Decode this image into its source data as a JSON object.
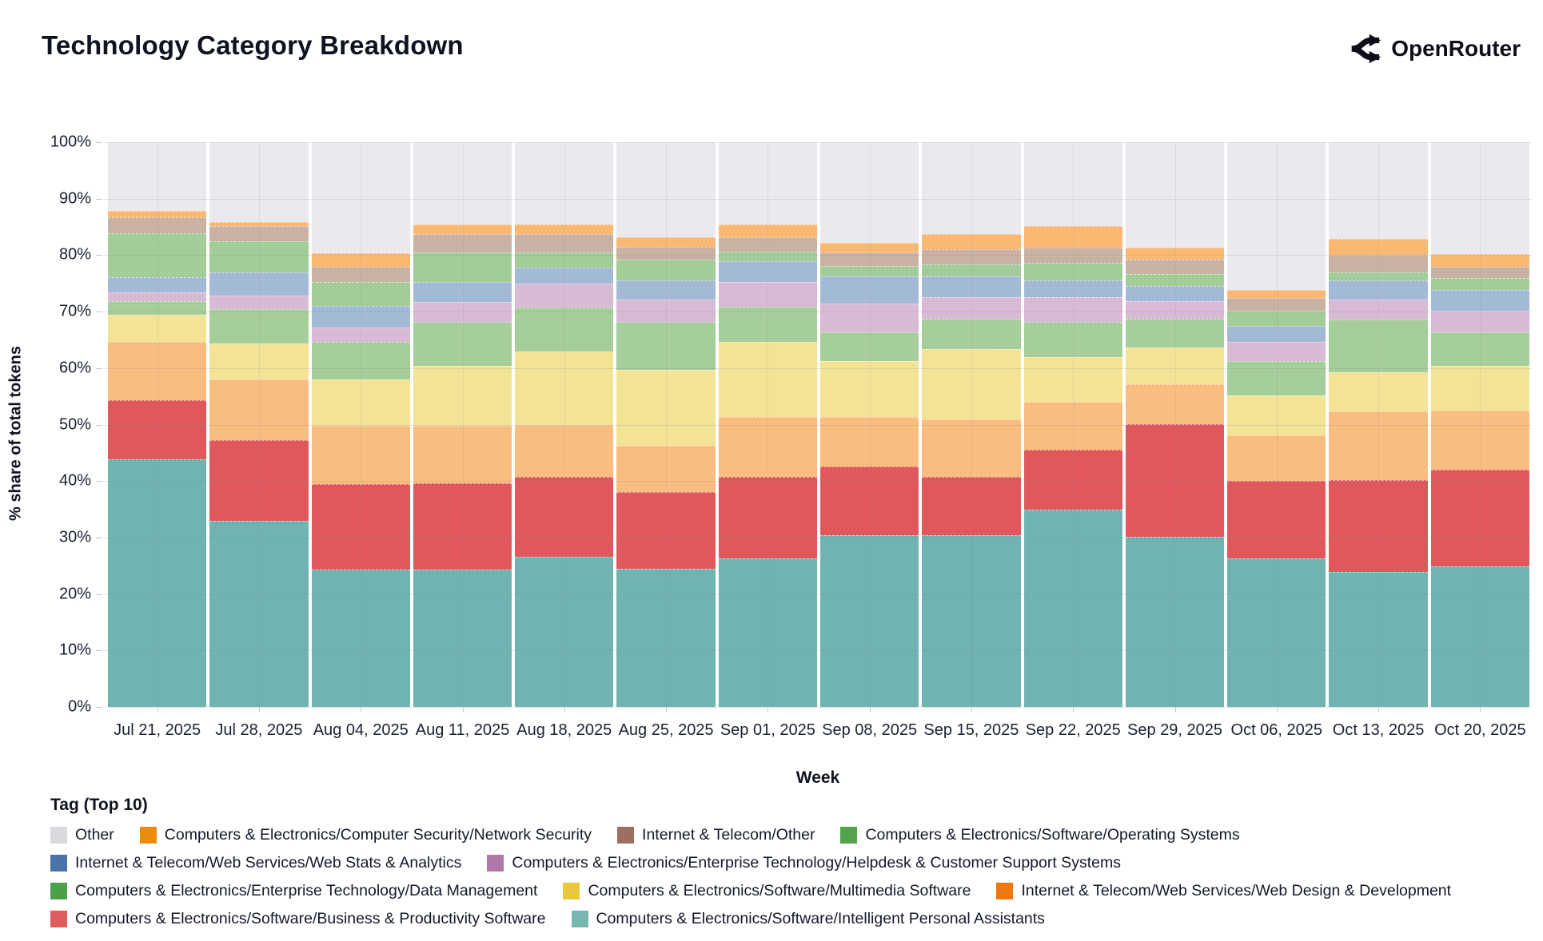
{
  "header": {
    "title": "Technology Category Breakdown",
    "brand": "OpenRouter"
  },
  "chart_data": {
    "type": "bar",
    "stacked": true,
    "title": "Technology Category Breakdown",
    "xlabel": "Week",
    "ylabel": "% share of total tokens",
    "ylim": [
      0,
      100
    ],
    "grid": true,
    "legend_position": "bottom",
    "legend_title": "Tag (Top 10)",
    "yticks": [
      "0%",
      "10%",
      "20%",
      "30%",
      "40%",
      "50%",
      "60%",
      "70%",
      "80%",
      "90%",
      "100%"
    ],
    "categories": [
      "Jul 21, 2025",
      "Jul 28, 2025",
      "Aug 04, 2025",
      "Aug 11, 2025",
      "Aug 18, 2025",
      "Aug 25, 2025",
      "Sep 01, 2025",
      "Sep 08, 2025",
      "Sep 15, 2025",
      "Sep 22, 2025",
      "Sep 29, 2025",
      "Oct 06, 2025",
      "Oct 13, 2025",
      "Oct 20, 2025"
    ],
    "series": [
      {
        "name": "Computers & Electronics/Software/Intelligent Personal Assistants",
        "bar_color": "#6FB4B0",
        "legend_color": "#76B7B2",
        "pattern": "none",
        "values": [
          43.8,
          32.9,
          24.3,
          24.4,
          26.6,
          24.5,
          26.3,
          30.4,
          30.4,
          34.9,
          30.1,
          26.3,
          23.9,
          24.9
        ]
      },
      {
        "name": "Computers & Electronics/Software/Business & Productivity Software",
        "bar_color": "#E0585B",
        "legend_color": "#E05C5C",
        "pattern": "none",
        "values": [
          10.5,
          14.3,
          15.2,
          15.2,
          14.2,
          13.5,
          14.4,
          12.2,
          10.4,
          10.7,
          20.0,
          13.8,
          16.3,
          17.1
        ]
      },
      {
        "name": "Internet & Telecom/Web Services/Web Design & Development",
        "bar_color": "#F9BD80",
        "legend_color": "#F0770F",
        "pattern": "none",
        "values": [
          10.3,
          10.8,
          10.3,
          10.2,
          9.2,
          8.2,
          10.7,
          8.8,
          10.1,
          8.5,
          7.0,
          8.0,
          12.1,
          10.5
        ]
      },
      {
        "name": "Computers & Electronics/Software/Multimedia Software",
        "bar_color": "#F3E394",
        "legend_color": "#E9C839",
        "pattern": "none",
        "values": [
          4.9,
          6.4,
          8.2,
          10.6,
          13.0,
          13.5,
          13.2,
          9.9,
          12.5,
          7.8,
          6.6,
          7.1,
          6.9,
          7.9
        ]
      },
      {
        "name": "Computers & Electronics/Enterprise Technology/Data Management",
        "bar_color": "#A5CE9B",
        "legend_color": "#4CA04A",
        "pattern": "none",
        "values": [
          2.4,
          6.1,
          6.6,
          7.8,
          7.7,
          8.5,
          6.3,
          5.1,
          5.3,
          6.3,
          5.0,
          6.1,
          9.4,
          6.0
        ]
      },
      {
        "name": "Computers & Electronics/Enterprise Technology/Helpdesk & Customer Support Systems",
        "bar_color": "#D9BAD5",
        "legend_color": "#B078A8",
        "pattern": "dots-pink",
        "values": [
          1.5,
          2.4,
          2.6,
          3.5,
          4.3,
          4.0,
          4.4,
          5.0,
          3.9,
          4.4,
          3.2,
          3.3,
          3.6,
          3.7
        ]
      },
      {
        "name": "Internet & Telecom/Web Services/Web Stats & Analytics",
        "bar_color": "#A3BAD7",
        "legend_color": "#4A74A8",
        "pattern": "none",
        "values": [
          2.7,
          4.1,
          3.8,
          3.5,
          2.8,
          3.3,
          3.6,
          4.9,
          3.7,
          2.9,
          2.7,
          2.9,
          3.3,
          3.8
        ]
      },
      {
        "name": "Computers & Electronics/Software/Operating Systems",
        "bar_color": "#A2CC98",
        "legend_color": "#55A24E",
        "pattern": "none",
        "values": [
          7.8,
          5.5,
          4.2,
          5.3,
          2.7,
          3.7,
          1.8,
          1.8,
          2.0,
          3.1,
          2.1,
          2.7,
          1.4,
          2.0
        ]
      },
      {
        "name": "Internet & Telecom/Other",
        "bar_color": "#C9B2A4",
        "legend_color": "#9C6F62",
        "pattern": "dots-brown",
        "values": [
          2.8,
          2.6,
          2.8,
          3.2,
          3.3,
          2.3,
          2.5,
          2.4,
          2.8,
          2.7,
          2.5,
          2.2,
          3.1,
          2.1
        ]
      },
      {
        "name": "Computers & Electronics/Computer Security/Network Security",
        "bar_color": "#FAB873",
        "legend_color": "#EE8A0E",
        "pattern": "none",
        "values": [
          1.1,
          0.8,
          2.3,
          1.7,
          1.7,
          1.7,
          2.2,
          1.7,
          2.7,
          3.8,
          2.1,
          1.5,
          2.9,
          2.2
        ]
      },
      {
        "name": "Other",
        "bar_color": "#E9E9EE",
        "legend_color": "#D9D9DE",
        "pattern": "none",
        "values": [
          12.2,
          14.1,
          19.7,
          14.6,
          14.5,
          16.8,
          14.6,
          17.8,
          16.2,
          14.9,
          18.7,
          26.1,
          17.1,
          19.8
        ]
      }
    ],
    "legend_rows": [
      [
        10,
        9,
        8,
        7
      ],
      [
        6,
        5
      ],
      [
        4,
        3,
        2
      ],
      [
        1,
        0
      ]
    ]
  },
  "layout_colors": {
    "accent_dark": "#0f1220",
    "grid": "#e7e7ec",
    "tick": "#c7c7cf"
  }
}
